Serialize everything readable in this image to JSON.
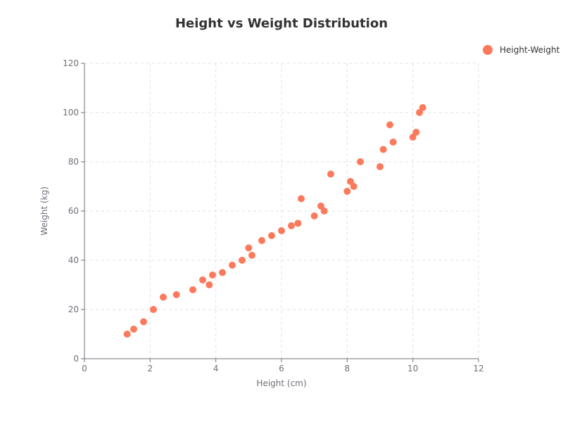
{
  "chart_data": {
    "type": "scatter",
    "title": "Height vs Weight Distribution",
    "xlabel": "Height (cm)",
    "ylabel": "Weight (kg)",
    "xlim": [
      0,
      12
    ],
    "ylim": [
      0,
      120
    ],
    "x_ticks": [
      0,
      2,
      4,
      6,
      8,
      10,
      12
    ],
    "y_ticks": [
      0,
      20,
      40,
      60,
      80,
      100,
      120
    ],
    "grid": true,
    "legend_position": "top-right",
    "series": [
      {
        "name": "Height-Weight",
        "color": "#fc7a5c",
        "points": [
          [
            1.3,
            10
          ],
          [
            1.5,
            12
          ],
          [
            1.8,
            15
          ],
          [
            2.1,
            20
          ],
          [
            2.4,
            25
          ],
          [
            2.8,
            26
          ],
          [
            3.3,
            28
          ],
          [
            3.6,
            32
          ],
          [
            3.8,
            30
          ],
          [
            3.9,
            34
          ],
          [
            4.2,
            35
          ],
          [
            4.5,
            38
          ],
          [
            4.8,
            40
          ],
          [
            5.0,
            45
          ],
          [
            5.1,
            42
          ],
          [
            5.4,
            48
          ],
          [
            5.7,
            50
          ],
          [
            6.0,
            52
          ],
          [
            6.3,
            54
          ],
          [
            6.5,
            55
          ],
          [
            6.6,
            65
          ],
          [
            7.0,
            58
          ],
          [
            7.2,
            62
          ],
          [
            7.3,
            60
          ],
          [
            7.5,
            75
          ],
          [
            8.0,
            68
          ],
          [
            8.1,
            72
          ],
          [
            8.2,
            70
          ],
          [
            8.4,
            80
          ],
          [
            9.0,
            78
          ],
          [
            9.1,
            85
          ],
          [
            9.3,
            95
          ],
          [
            9.4,
            88
          ],
          [
            10.0,
            90
          ],
          [
            10.1,
            92
          ],
          [
            10.2,
            100
          ],
          [
            10.3,
            102
          ]
        ]
      }
    ]
  }
}
